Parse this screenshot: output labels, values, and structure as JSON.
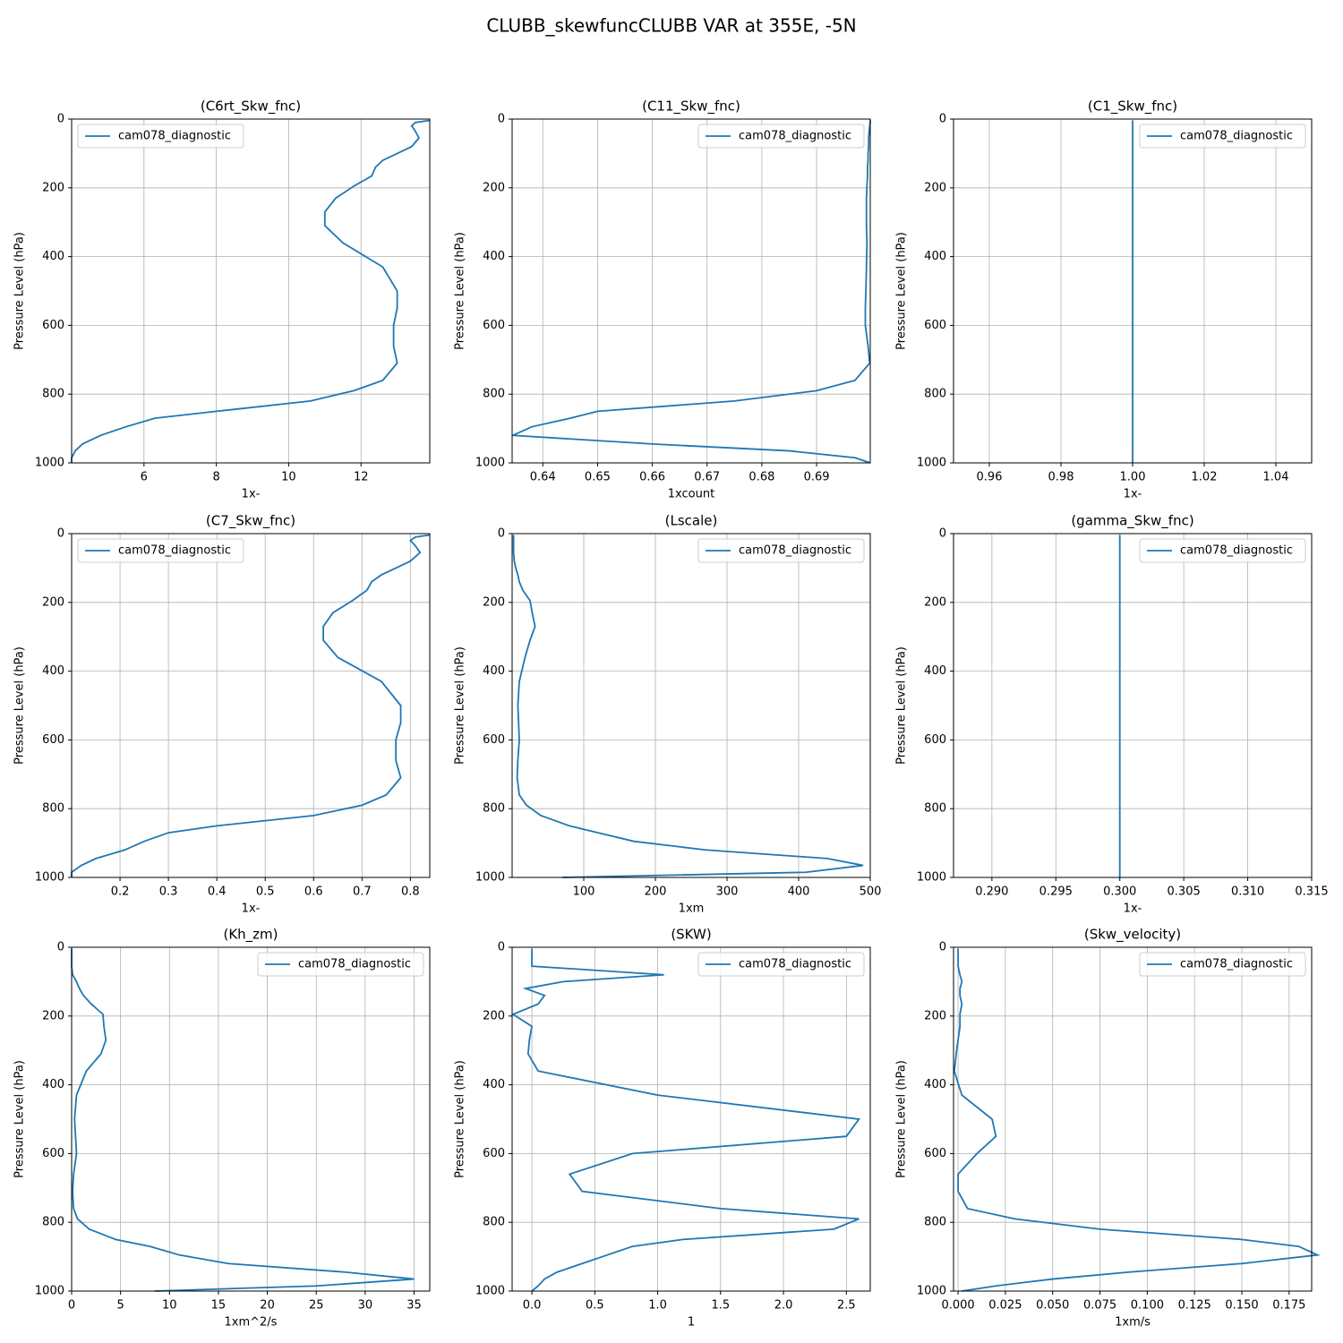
{
  "title": "CLUBB_skewfuncCLUBB VAR at 355E, -5N",
  "chart_data": [
    {
      "type": "line",
      "title": "(C6rt_Skw_fnc)",
      "xlabel": "1x-",
      "ylabel": "Pressure Level (hPa)",
      "legend": "upper left",
      "grid": true,
      "xlim": [
        4.0,
        13.9
      ],
      "xticks": [
        6,
        8,
        10,
        12
      ],
      "ylim": [
        1000,
        0
      ],
      "yticks": [
        0,
        200,
        400,
        600,
        800,
        1000
      ],
      "y": [
        4,
        10,
        20,
        35,
        55,
        80,
        100,
        120,
        140,
        165,
        195,
        230,
        270,
        310,
        360,
        430,
        500,
        550,
        600,
        660,
        710,
        760,
        790,
        820,
        850,
        870,
        895,
        920,
        945,
        965,
        985,
        1000
      ],
      "series": [
        {
          "name": "cam078_diagnostic",
          "color": "#1f77b4",
          "values": [
            13.9,
            13.5,
            13.4,
            13.5,
            13.6,
            13.4,
            13.0,
            12.6,
            12.4,
            12.3,
            11.8,
            11.3,
            11.0,
            11.0,
            11.5,
            12.6,
            13.0,
            13.0,
            12.9,
            12.9,
            13.0,
            12.6,
            11.8,
            10.6,
            8.0,
            6.3,
            5.5,
            4.8,
            4.3,
            4.1,
            4.0,
            4.0
          ]
        }
      ]
    },
    {
      "type": "line",
      "title": "(C11_Skw_fnc)",
      "xlabel": "1xcount",
      "ylabel": "Pressure Level (hPa)",
      "legend": "upper right",
      "grid": true,
      "xlim": [
        0.6344,
        0.6998
      ],
      "xticks": [
        0.64,
        0.65,
        0.66,
        0.67,
        0.68,
        0.69
      ],
      "ylim": [
        1000,
        0
      ],
      "yticks": [
        0,
        200,
        400,
        600,
        800,
        1000
      ],
      "y": [
        4,
        10,
        20,
        35,
        55,
        80,
        100,
        120,
        140,
        165,
        195,
        230,
        270,
        310,
        360,
        430,
        500,
        550,
        600,
        660,
        710,
        760,
        790,
        820,
        850,
        870,
        895,
        920,
        945,
        965,
        985,
        1000
      ],
      "series": [
        {
          "name": "cam078_diagnostic",
          "color": "#1f77b4",
          "values": [
            0.6998,
            0.6998,
            0.6997,
            0.6996,
            0.6995,
            0.6995,
            0.6994,
            0.6994,
            0.6993,
            0.6993,
            0.6992,
            0.6991,
            0.6991,
            0.6991,
            0.6992,
            0.6991,
            0.699,
            0.6989,
            0.6989,
            0.6994,
            0.6997,
            0.697,
            0.69,
            0.675,
            0.65,
            0.645,
            0.638,
            0.6345,
            0.66,
            0.685,
            0.697,
            0.6998
          ]
        }
      ]
    },
    {
      "type": "line",
      "title": "(C1_Skw_fnc)",
      "xlabel": "1x-",
      "ylabel": "Pressure Level (hPa)",
      "legend": "upper right",
      "grid": true,
      "xlim": [
        0.95,
        1.05
      ],
      "xticks": [
        0.96,
        0.98,
        {
          "value": 1,
          "label": "1.00"
        },
        1.02,
        1.04
      ],
      "ylim": [
        1000,
        0
      ],
      "yticks": [
        0,
        200,
        400,
        600,
        800,
        1000
      ],
      "y": [
        4,
        10,
        20,
        35,
        55,
        80,
        100,
        120,
        140,
        165,
        195,
        230,
        270,
        310,
        360,
        430,
        500,
        550,
        600,
        660,
        710,
        760,
        790,
        820,
        850,
        870,
        895,
        920,
        945,
        965,
        985,
        1000
      ],
      "series": [
        {
          "name": "cam078_diagnostic",
          "color": "#1f77b4",
          "values": [
            1,
            1,
            1,
            1,
            1,
            1,
            1,
            1,
            1,
            1,
            1,
            1,
            1,
            1,
            1,
            1,
            1,
            1,
            1,
            1,
            1,
            1,
            1,
            1,
            1,
            1,
            1,
            1,
            1,
            1,
            1,
            1
          ]
        }
      ]
    },
    {
      "type": "line",
      "title": "(C7_Skw_fnc)",
      "xlabel": "1x-",
      "ylabel": "Pressure Level (hPa)",
      "legend": "upper left",
      "grid": true,
      "xlim": [
        0.1,
        0.84
      ],
      "xticks": [
        0.2,
        0.3,
        0.4,
        0.5,
        0.6,
        0.7,
        0.8
      ],
      "ylim": [
        1000,
        0
      ],
      "yticks": [
        0,
        200,
        400,
        600,
        800,
        1000
      ],
      "y": [
        4,
        10,
        20,
        35,
        55,
        80,
        100,
        120,
        140,
        165,
        195,
        230,
        270,
        310,
        360,
        430,
        500,
        550,
        600,
        660,
        710,
        760,
        790,
        820,
        850,
        870,
        895,
        920,
        945,
        965,
        985,
        1000
      ],
      "series": [
        {
          "name": "cam078_diagnostic",
          "color": "#1f77b4",
          "values": [
            0.84,
            0.81,
            0.8,
            0.81,
            0.82,
            0.8,
            0.77,
            0.74,
            0.72,
            0.71,
            0.68,
            0.64,
            0.62,
            0.62,
            0.65,
            0.74,
            0.78,
            0.78,
            0.77,
            0.77,
            0.78,
            0.75,
            0.7,
            0.6,
            0.4,
            0.3,
            0.25,
            0.21,
            0.15,
            0.12,
            0.1,
            0.1
          ]
        }
      ]
    },
    {
      "type": "line",
      "title": "(Lscale)",
      "xlabel": "1xm",
      "ylabel": "Pressure Level (hPa)",
      "legend": "upper right",
      "grid": true,
      "xlim": [
        0,
        500
      ],
      "xticks": [
        100,
        200,
        300,
        400,
        500
      ],
      "ylim": [
        1000,
        0
      ],
      "yticks": [
        0,
        200,
        400,
        600,
        800,
        1000
      ],
      "y": [
        4,
        10,
        20,
        35,
        55,
        80,
        100,
        120,
        140,
        165,
        195,
        230,
        270,
        310,
        360,
        430,
        500,
        550,
        600,
        660,
        710,
        760,
        790,
        820,
        850,
        870,
        895,
        920,
        945,
        965,
        985,
        1000
      ],
      "series": [
        {
          "name": "cam078_diagnostic",
          "color": "#1f77b4",
          "values": [
            2,
            2,
            2,
            2,
            2,
            3,
            5,
            8,
            10,
            15,
            25,
            28,
            32,
            25,
            18,
            10,
            8,
            9,
            10,
            8,
            7,
            10,
            20,
            40,
            80,
            120,
            170,
            270,
            440,
            490,
            410,
            70
          ]
        }
      ]
    },
    {
      "type": "line",
      "title": "(gamma_Skw_fnc)",
      "xlabel": "1x-",
      "ylabel": "Pressure Level (hPa)",
      "legend": "upper right",
      "grid": true,
      "xlim": [
        0.287,
        0.315
      ],
      "xticks": [
        {
          "value": 0.29,
          "label": "0.290"
        },
        0.295,
        {
          "value": 0.3,
          "label": "0.300"
        },
        0.305,
        {
          "value": 0.31,
          "label": "0.310"
        },
        0.315
      ],
      "ylim": [
        1000,
        0
      ],
      "yticks": [
        0,
        200,
        400,
        600,
        800,
        1000
      ],
      "y": [
        4,
        10,
        20,
        35,
        55,
        80,
        100,
        120,
        140,
        165,
        195,
        230,
        270,
        310,
        360,
        430,
        500,
        550,
        600,
        660,
        710,
        760,
        790,
        820,
        850,
        870,
        895,
        920,
        945,
        965,
        985,
        1000
      ],
      "series": [
        {
          "name": "cam078_diagnostic",
          "color": "#1f77b4",
          "values": [
            0.3,
            0.3,
            0.3,
            0.3,
            0.3,
            0.3,
            0.3,
            0.3,
            0.3,
            0.3,
            0.3,
            0.3,
            0.3,
            0.3,
            0.3,
            0.3,
            0.3,
            0.3,
            0.3,
            0.3,
            0.3,
            0.3,
            0.3,
            0.3,
            0.3,
            0.3,
            0.3,
            0.3,
            0.3,
            0.3,
            0.3,
            0.3
          ]
        }
      ]
    },
    {
      "type": "line",
      "title": "(Kh_zm)",
      "xlabel": "1xm^2/s",
      "ylabel": "Pressure Level (hPa)",
      "legend": "upper right",
      "grid": true,
      "xlim": [
        0,
        36.6
      ],
      "xticks": [
        0,
        5,
        10,
        15,
        20,
        25,
        30,
        35
      ],
      "ylim": [
        1000,
        0
      ],
      "yticks": [
        0,
        200,
        400,
        600,
        800,
        1000
      ],
      "y": [
        4,
        10,
        20,
        35,
        55,
        80,
        100,
        120,
        140,
        165,
        195,
        230,
        270,
        310,
        360,
        430,
        500,
        550,
        600,
        660,
        710,
        760,
        790,
        820,
        850,
        870,
        895,
        920,
        945,
        965,
        985,
        1000
      ],
      "series": [
        {
          "name": "cam078_diagnostic",
          "color": "#1f77b4",
          "values": [
            0,
            0,
            0,
            0,
            0,
            0.1,
            0.5,
            0.8,
            1.2,
            2.0,
            3.2,
            3.3,
            3.5,
            3.0,
            1.5,
            0.5,
            0.3,
            0.4,
            0.5,
            0.2,
            0.1,
            0.2,
            0.6,
            1.8,
            4.5,
            8.0,
            11,
            16,
            28,
            35,
            25,
            8.5
          ]
        }
      ]
    },
    {
      "type": "line",
      "title": "(SKW)",
      "xlabel": "1",
      "ylabel": "Pressure Level (hPa)",
      "legend": "upper right",
      "grid": true,
      "xlim": [
        -0.157,
        2.69
      ],
      "xticks": [
        {
          "value": 0,
          "label": "0.0"
        },
        0.5,
        {
          "value": 1,
          "label": "1.0"
        },
        1.5,
        {
          "value": 2,
          "label": "2.0"
        },
        2.5
      ],
      "ylim": [
        1000,
        0
      ],
      "yticks": [
        0,
        200,
        400,
        600,
        800,
        1000
      ],
      "y": [
        4,
        10,
        20,
        35,
        55,
        80,
        100,
        120,
        140,
        165,
        195,
        230,
        270,
        310,
        360,
        430,
        500,
        550,
        600,
        660,
        710,
        760,
        790,
        820,
        850,
        870,
        895,
        920,
        945,
        965,
        985,
        1000
      ],
      "series": [
        {
          "name": "cam078_diagnostic",
          "color": "#1f77b4",
          "values": [
            0,
            0,
            0,
            0,
            0,
            1.05,
            0.25,
            -0.05,
            0.1,
            0.05,
            -0.15,
            0,
            -0.02,
            -0.03,
            0.05,
            1.0,
            2.6,
            2.5,
            0.8,
            0.3,
            0.4,
            1.5,
            2.6,
            2.4,
            1.2,
            0.8,
            0.6,
            0.4,
            0.2,
            0.1,
            0.05,
            0
          ]
        }
      ]
    },
    {
      "type": "line",
      "title": "(Skw_velocity)",
      "xlabel": "1xm/s",
      "ylabel": "Pressure Level (hPa)",
      "legend": "upper right",
      "grid": true,
      "xlim": [
        -0.0024,
        0.1869
      ],
      "xticks": [
        {
          "value": 0,
          "label": "0.000"
        },
        0.025,
        {
          "value": 0.05,
          "label": "0.050"
        },
        0.075,
        {
          "value": 0.1,
          "label": "0.100"
        },
        0.125,
        {
          "value": 0.15,
          "label": "0.150"
        },
        0.175
      ],
      "ylim": [
        1000,
        0
      ],
      "yticks": [
        0,
        200,
        400,
        600,
        800,
        1000
      ],
      "y": [
        4,
        10,
        20,
        35,
        55,
        80,
        100,
        120,
        140,
        165,
        195,
        230,
        270,
        310,
        360,
        430,
        500,
        550,
        600,
        660,
        710,
        760,
        790,
        820,
        850,
        870,
        895,
        920,
        945,
        965,
        985,
        1000
      ],
      "series": [
        {
          "name": "cam078_diagnostic",
          "color": "#1f77b4",
          "values": [
            0,
            0,
            0,
            0,
            0,
            0.001,
            0.002,
            0.001,
            0.001,
            0.002,
            0.001,
            0.001,
            0,
            -0.001,
            -0.002,
            0.002,
            0.018,
            0.02,
            0.01,
            0,
            0,
            0.005,
            0.03,
            0.075,
            0.15,
            0.18,
            0.19,
            0.15,
            0.09,
            0.05,
            0.02,
            0.002
          ]
        }
      ]
    }
  ]
}
